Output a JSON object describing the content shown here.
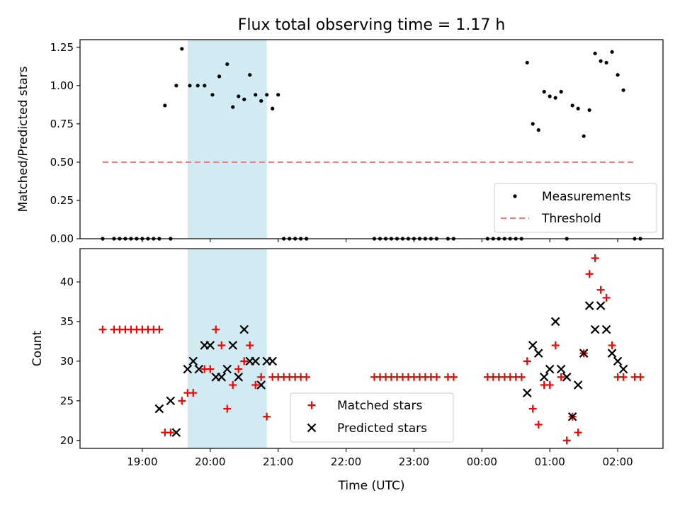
{
  "chart_data": [
    {
      "type": "scatter",
      "title": "Flux total observing time = 1.17 h",
      "ylabel": "Matched/Predicted stars",
      "xlabel": "",
      "ylim": [
        0,
        1.3
      ],
      "yticks": [
        "0.00",
        "0.25",
        "0.50",
        "0.75",
        "1.00",
        "1.25"
      ],
      "ytick_values": [
        0,
        0.25,
        0.5,
        0.75,
        1.0,
        1.25
      ],
      "shaded_interval": [
        "19:40",
        "20:50"
      ],
      "legend": {
        "placement": "lower-right",
        "entries": [
          "Measurements",
          "Threshold"
        ]
      },
      "series": [
        {
          "name": "Measurements",
          "color": "#000000",
          "x": [
            "18:25",
            "18:35",
            "18:40",
            "18:45",
            "18:50",
            "18:55",
            "19:00",
            "19:05",
            "19:10",
            "19:15",
            "19:20",
            "19:25",
            "19:30",
            "19:35",
            "19:42",
            "19:49",
            "19:55",
            "20:02",
            "20:08",
            "20:15",
            "20:20",
            "20:25",
            "20:30",
            "20:35",
            "20:40",
            "20:45",
            "20:50",
            "20:55",
            "21:00",
            "21:05",
            "21:10",
            "21:15",
            "21:20",
            "21:25",
            "22:25",
            "22:30",
            "22:35",
            "22:40",
            "22:45",
            "22:50",
            "22:55",
            "23:00",
            "23:05",
            "23:10",
            "23:15",
            "23:20",
            "23:30",
            "23:35",
            "00:05",
            "00:10",
            "00:15",
            "00:20",
            "00:25",
            "00:30",
            "00:35",
            "00:40",
            "00:45",
            "00:50",
            "00:55",
            "01:00",
            "01:05",
            "01:10",
            "01:15",
            "01:20",
            "01:25",
            "01:30",
            "01:35",
            "01:40",
            "01:45",
            "01:50",
            "01:55",
            "02:00",
            "02:05",
            "02:15",
            "02:20"
          ],
          "y": [
            0,
            0,
            0,
            0,
            0,
            0,
            0,
            0,
            0,
            0,
            0.87,
            0,
            1.0,
            1.24,
            1.0,
            1.0,
            1.0,
            0.94,
            1.06,
            1.14,
            0.86,
            0.93,
            0.91,
            1.07,
            0.94,
            0.9,
            0.94,
            0.85,
            0.94,
            0,
            0,
            0,
            0,
            0,
            0,
            0,
            0,
            0,
            0,
            0,
            0,
            0,
            0,
            0,
            0,
            0,
            0,
            0,
            0,
            0,
            0,
            0,
            0,
            0,
            0,
            1.15,
            0.75,
            0.71,
            0.96,
            0.93,
            0.92,
            0.96,
            0,
            0.87,
            0.85,
            0.67,
            0.84,
            1.21,
            1.16,
            1.15,
            1.22,
            1.07,
            0.97,
            0,
            0
          ]
        },
        {
          "name": "Threshold",
          "color": "#f08080",
          "x": [
            "18:25",
            "02:15"
          ],
          "y": [
            0.5,
            0.5
          ]
        }
      ]
    },
    {
      "type": "scatter",
      "title": "",
      "ylabel": "Count",
      "xlabel": "Time (UTC)",
      "ylim": [
        19,
        44.2
      ],
      "yticks": [
        "20",
        "25",
        "30",
        "35",
        "40"
      ],
      "ytick_values": [
        20,
        25,
        30,
        35,
        40
      ],
      "xticks": [
        "19:00",
        "20:00",
        "21:00",
        "22:00",
        "23:00",
        "00:00",
        "01:00",
        "02:00"
      ],
      "xlim": [
        "18:05",
        "02:40"
      ],
      "shaded_interval": [
        "19:40",
        "20:50"
      ],
      "legend": {
        "placement": "lower-center",
        "entries": [
          "Matched stars",
          "Predicted stars"
        ]
      },
      "series": [
        {
          "name": "Matched stars",
          "color": "#ff0000",
          "x": [
            "18:25",
            "18:35",
            "18:40",
            "18:45",
            "18:50",
            "18:55",
            "19:00",
            "19:05",
            "19:10",
            "19:15",
            "19:20",
            "19:25",
            "19:35",
            "19:40",
            "19:45",
            "19:55",
            "20:00",
            "20:05",
            "20:10",
            "20:15",
            "20:20",
            "20:25",
            "20:30",
            "20:35",
            "20:40",
            "20:45",
            "20:50",
            "20:55",
            "21:00",
            "21:05",
            "21:10",
            "21:15",
            "21:20",
            "21:25",
            "22:25",
            "22:30",
            "22:35",
            "22:40",
            "22:45",
            "22:50",
            "22:55",
            "23:00",
            "23:05",
            "23:10",
            "23:15",
            "23:20",
            "23:30",
            "23:35",
            "00:05",
            "00:10",
            "00:15",
            "00:20",
            "00:25",
            "00:30",
            "00:35",
            "00:40",
            "00:45",
            "00:50",
            "00:55",
            "01:00",
            "01:05",
            "01:10",
            "01:15",
            "01:20",
            "01:25",
            "01:30",
            "01:35",
            "01:40",
            "01:45",
            "01:50",
            "01:55",
            "02:00",
            "02:05",
            "02:15",
            "02:20"
          ],
          "y": [
            34,
            34,
            34,
            34,
            34,
            34,
            34,
            34,
            34,
            34,
            21,
            21,
            25,
            26,
            26,
            29,
            29,
            34,
            32,
            24,
            27,
            29,
            30,
            32,
            27,
            28,
            23,
            28,
            28,
            28,
            28,
            28,
            28,
            28,
            28,
            28,
            28,
            28,
            28,
            28,
            28,
            28,
            28,
            28,
            28,
            28,
            28,
            28,
            28,
            28,
            28,
            28,
            28,
            28,
            28,
            30,
            24,
            22,
            27,
            27,
            32,
            28,
            20,
            23,
            21,
            31,
            41,
            43,
            39,
            38,
            32,
            28,
            28,
            28,
            28
          ]
        },
        {
          "name": "Predicted stars",
          "color": "#000000",
          "x": [
            "19:15",
            "19:25",
            "19:30",
            "19:40",
            "19:45",
            "19:50",
            "19:55",
            "20:00",
            "20:05",
            "20:10",
            "20:15",
            "20:20",
            "20:25",
            "20:30",
            "20:35",
            "20:40",
            "20:45",
            "20:50",
            "20:55",
            "00:40",
            "00:45",
            "00:50",
            "00:55",
            "01:00",
            "01:05",
            "01:10",
            "01:15",
            "01:20",
            "01:25",
            "01:30",
            "01:35",
            "01:40",
            "01:45",
            "01:50",
            "01:55",
            "02:00",
            "02:05"
          ],
          "y": [
            24,
            25,
            21,
            29,
            30,
            29,
            32,
            32,
            28,
            28,
            29,
            32,
            28,
            34,
            30,
            30,
            27,
            30,
            30,
            26,
            32,
            31,
            28,
            29,
            35,
            29,
            28,
            23,
            27,
            31,
            37,
            34,
            37,
            34,
            31,
            30,
            29
          ]
        }
      ]
    }
  ]
}
